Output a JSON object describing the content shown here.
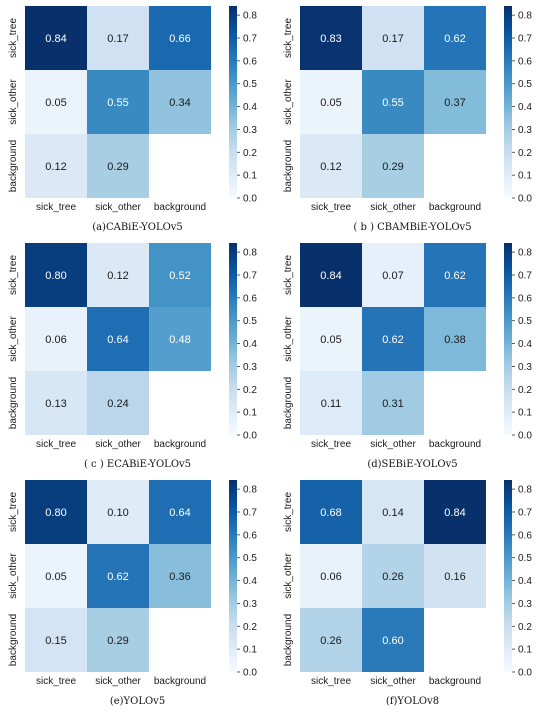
{
  "chart_data": [
    {
      "type": "heatmap",
      "caption": "(a)CABiE-YOLOv5",
      "row_labels": [
        "sick_tree",
        "sick_other",
        "background"
      ],
      "col_labels": [
        "sick_tree",
        "sick_other",
        "background"
      ],
      "values": [
        [
          0.84,
          0.17,
          0.66
        ],
        [
          0.05,
          0.55,
          0.34
        ],
        [
          0.12,
          0.29,
          null
        ]
      ],
      "colorbar_ticks": [
        "0.0",
        "0.1",
        "0.2",
        "0.3",
        "0.4",
        "0.5",
        "0.6",
        "0.7",
        "0.8"
      ],
      "vmin": 0.0,
      "vmax": 0.84,
      "colormap": "Blues"
    },
    {
      "type": "heatmap",
      "caption": "( b ) CBAMBiE-YOLOv5",
      "row_labels": [
        "sick_tree",
        "sick_other",
        "background"
      ],
      "col_labels": [
        "sick_tree",
        "sick_other",
        "background"
      ],
      "values": [
        [
          0.83,
          0.17,
          0.62
        ],
        [
          0.05,
          0.55,
          0.37
        ],
        [
          0.12,
          0.29,
          null
        ]
      ],
      "colorbar_ticks": [
        "0.0",
        "0.1",
        "0.2",
        "0.3",
        "0.4",
        "0.5",
        "0.6",
        "0.7",
        "0.8"
      ],
      "vmin": 0.0,
      "vmax": 0.84,
      "colormap": "Blues"
    },
    {
      "type": "heatmap",
      "caption": "( c ) ECABiE-YOLOv5",
      "row_labels": [
        "sick_tree",
        "sick_other",
        "background"
      ],
      "col_labels": [
        "sick_tree",
        "sick_other",
        "background"
      ],
      "values": [
        [
          0.8,
          0.12,
          0.52
        ],
        [
          0.06,
          0.64,
          0.48
        ],
        [
          0.13,
          0.24,
          null
        ]
      ],
      "colorbar_ticks": [
        "0.0",
        "0.1",
        "0.2",
        "0.3",
        "0.4",
        "0.5",
        "0.6",
        "0.7",
        "0.8"
      ],
      "vmin": 0.0,
      "vmax": 0.84,
      "colormap": "Blues"
    },
    {
      "type": "heatmap",
      "caption": "(d)SEBiE-YOLOv5",
      "row_labels": [
        "sick_tree",
        "sick_other",
        "background"
      ],
      "col_labels": [
        "sick_tree",
        "sick_other",
        "background"
      ],
      "values": [
        [
          0.84,
          0.07,
          0.62
        ],
        [
          0.05,
          0.62,
          0.38
        ],
        [
          0.11,
          0.31,
          null
        ]
      ],
      "colorbar_ticks": [
        "0.0",
        "0.1",
        "0.2",
        "0.3",
        "0.4",
        "0.5",
        "0.6",
        "0.7",
        "0.8"
      ],
      "vmin": 0.0,
      "vmax": 0.84,
      "colormap": "Blues"
    },
    {
      "type": "heatmap",
      "caption": "(e)YOLOv5",
      "row_labels": [
        "sick_tree",
        "sick_other",
        "background"
      ],
      "col_labels": [
        "sick_tree",
        "sick_other",
        "background"
      ],
      "values": [
        [
          0.8,
          0.1,
          0.64
        ],
        [
          0.05,
          0.62,
          0.36
        ],
        [
          0.15,
          0.29,
          null
        ]
      ],
      "colorbar_ticks": [
        "0.0",
        "0.1",
        "0.2",
        "0.3",
        "0.4",
        "0.5",
        "0.6",
        "0.7",
        "0.8"
      ],
      "vmin": 0.0,
      "vmax": 0.84,
      "colormap": "Blues"
    },
    {
      "type": "heatmap",
      "caption": "(f)YOLOv8",
      "row_labels": [
        "sick_tree",
        "sick_other",
        "background"
      ],
      "col_labels": [
        "sick_tree",
        "sick_other",
        "background"
      ],
      "values": [
        [
          0.68,
          0.14,
          0.84
        ],
        [
          0.06,
          0.26,
          0.16
        ],
        [
          0.26,
          0.6,
          null
        ]
      ],
      "colorbar_ticks": [
        "0.0",
        "0.1",
        "0.2",
        "0.3",
        "0.4",
        "0.5",
        "0.6",
        "0.7",
        "0.8"
      ],
      "vmin": 0.0,
      "vmax": 0.84,
      "colormap": "Blues"
    }
  ]
}
